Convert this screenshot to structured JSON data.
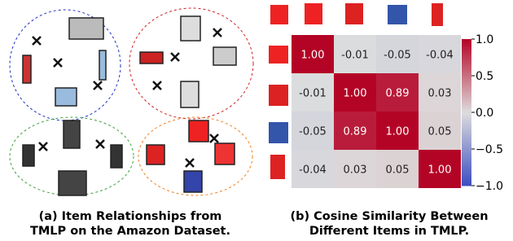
{
  "captions": {
    "a": [
      "(a) Item Relationships from",
      "TMLP on the Amazon Dataset."
    ],
    "b": [
      "(b) Cosine Similarity Between",
      "Different Items in TMLP."
    ]
  },
  "chart_data": {
    "type": "heatmap",
    "values": [
      [
        1.0,
        -0.01,
        -0.05,
        -0.04
      ],
      [
        -0.01,
        1.0,
        0.89,
        0.03
      ],
      [
        -0.05,
        0.89,
        1.0,
        0.05
      ],
      [
        -0.04,
        0.03,
        0.05,
        1.0
      ]
    ],
    "value_labels": [
      [
        "1.00",
        "-0.01",
        "-0.05",
        "-0.04"
      ],
      [
        "-0.01",
        "1.00",
        "0.89",
        "0.03"
      ],
      [
        "-0.05",
        "0.89",
        "1.00",
        "0.05"
      ],
      [
        "-0.04",
        "0.03",
        "0.05",
        "1.00"
      ]
    ],
    "zlim": [
      -1,
      1
    ],
    "zticks": [
      {
        "value": 1,
        "label": "1.0"
      },
      {
        "value": 0.5,
        "label": "0.5"
      },
      {
        "value": 0,
        "label": "0.0"
      },
      {
        "value": -0.5,
        "label": "−0.5"
      },
      {
        "value": -1,
        "label": "−1.0"
      }
    ],
    "colors": [
      "#3b4cc0",
      "#dddddd",
      "#b40426"
    ]
  }
}
